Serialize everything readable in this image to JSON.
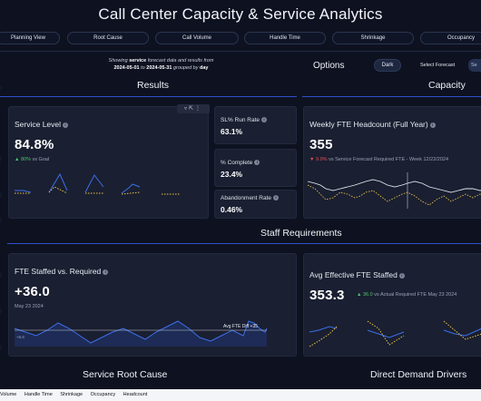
{
  "header": {
    "title": "Call Center Capacity & Service Analytics"
  },
  "tabs": [
    {
      "label": "Planning View"
    },
    {
      "label": "Root Cause"
    },
    {
      "label": "Call Volume"
    },
    {
      "label": "Handle Time"
    },
    {
      "label": "Shrinkage"
    },
    {
      "label": "Occupancy"
    }
  ],
  "forecast_note": {
    "prefix": "Showing",
    "bold1": "service",
    "middle": "forecast data and results from",
    "start": "2024-05-01",
    "to": "to",
    "end": "2024-05-31",
    "grouped": "grouped by",
    "group": "day"
  },
  "options": {
    "label": "Options",
    "theme_button": "Dark",
    "select_label": "Select Forecast",
    "select_value": "Se"
  },
  "sections": {
    "results": "Results",
    "capacity": "Capacity",
    "staff": "Staff Requirements",
    "root_cause": "Service Root Cause",
    "demand": "Direct Demand Drivers"
  },
  "toolbar_icons": [
    "filter-icon",
    "expand-icon",
    "more-icon"
  ],
  "service_level": {
    "title": "Service Level",
    "value": "84.8%",
    "delta": "80%",
    "delta_text": "vs Goal",
    "delta_color": "#4cc36d"
  },
  "kpis": [
    {
      "title": "SL% Run Rate",
      "value": "63.1%"
    },
    {
      "title": "% Complete",
      "value": "23.4%"
    },
    {
      "title": "Abandonment Rate",
      "value": "0.46%"
    }
  ],
  "fte_headcount": {
    "title": "Weekly FTE Headcount (Full Year)",
    "value": "355",
    "delta": "9.9%",
    "delta_text": "vs Service Forecast Required FTE - Week 12/22/2024",
    "delta_color": "#e0504f"
  },
  "fte_staffed": {
    "title": "FTE Staffed vs. Required",
    "value": "+36.0",
    "date": "May 23 2024",
    "avg_label": "Avg FTE Diff +35",
    "axis_label": "+6.6"
  },
  "avg_effective": {
    "title": "Avg Effective FTE Staffed",
    "value": "353.3",
    "delta": "36.0",
    "delta_text": "vs Actual Required FTE May 23 2024",
    "delta_color": "#4cc36d"
  },
  "footer_tabs": [
    "Volume",
    "Handle Time",
    "Shrinkage",
    "Occupancy",
    "Headcount"
  ],
  "colors": {
    "accent_blue": "#3d6fe8",
    "forecast_yellow": "#e8c24a",
    "background": "#0e1220",
    "card": "#1a1f31"
  }
}
